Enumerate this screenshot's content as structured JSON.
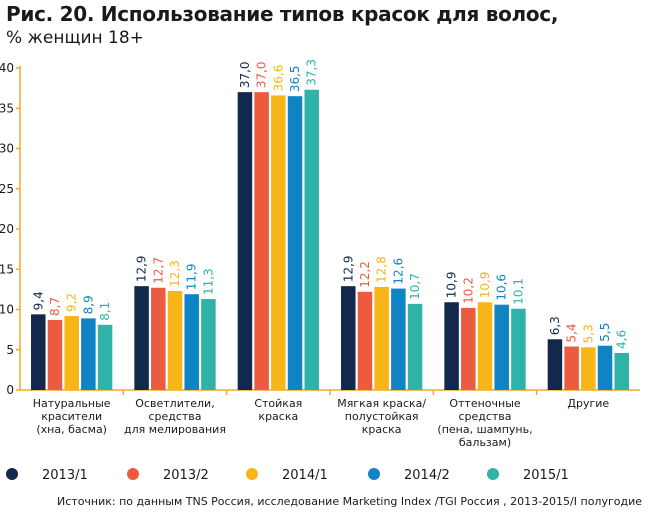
{
  "title": "Рис. 20. Использование типов красок для волос,",
  "subtitle": "% женщин 18+",
  "source": "Источник: по данным TNS Россия, исследование Marketing Index /TGI Россия , 2013-2015/I полугодие",
  "colors": {
    "2013/1": "#12284c",
    "2013/2": "#ec5b3f",
    "2014/1": "#f8b517",
    "2014/2": "#0f84c4",
    "2015/1": "#2fb3a8",
    "axis": "#f2a92c"
  },
  "chart_data": {
    "type": "bar",
    "categories": [
      [
        "Натуральные",
        "красители",
        "(хна, басма)"
      ],
      [
        "Осветлители,",
        "средства",
        "для мелирования"
      ],
      [
        "Стойкая",
        "краска"
      ],
      [
        "Мягкая краска/",
        "полустойкая",
        "краска"
      ],
      [
        "Оттеночные",
        "средства",
        "(пена, шампунь,",
        "бальзам)"
      ],
      [
        "Другие"
      ]
    ],
    "series": [
      {
        "name": "2013/1",
        "values": [
          9.4,
          12.9,
          37.0,
          12.9,
          10.9,
          6.3
        ],
        "labels": [
          "9,4",
          "12,9",
          "37,0",
          "12,9",
          "10,9",
          "6,3"
        ]
      },
      {
        "name": "2013/2",
        "values": [
          8.7,
          12.7,
          37.0,
          12.2,
          10.2,
          5.4
        ],
        "labels": [
          "8,7",
          "12,7",
          "37,0",
          "12,2",
          "10,2",
          "5,4"
        ]
      },
      {
        "name": "2014/1",
        "values": [
          9.2,
          12.3,
          36.6,
          12.8,
          10.9,
          5.3
        ],
        "labels": [
          "9,2",
          "12,3",
          "36,6",
          "12,8",
          "10,9",
          "5,3"
        ]
      },
      {
        "name": "2014/2",
        "values": [
          8.9,
          11.9,
          36.5,
          12.6,
          10.6,
          5.5
        ],
        "labels": [
          "8,9",
          "11,9",
          "36,5",
          "12,6",
          "10,6",
          "5,5"
        ]
      },
      {
        "name": "2015/1",
        "values": [
          8.1,
          11.3,
          37.3,
          10.7,
          10.1,
          4.6
        ],
        "labels": [
          "8,1",
          "11,3",
          "37,3",
          "10,7",
          "10,1",
          "4,6"
        ]
      }
    ],
    "ylim": [
      0,
      40
    ],
    "yticks": [
      0,
      5,
      10,
      15,
      20,
      25,
      30,
      35,
      40
    ],
    "grid": false,
    "legend_position": "bottom"
  }
}
